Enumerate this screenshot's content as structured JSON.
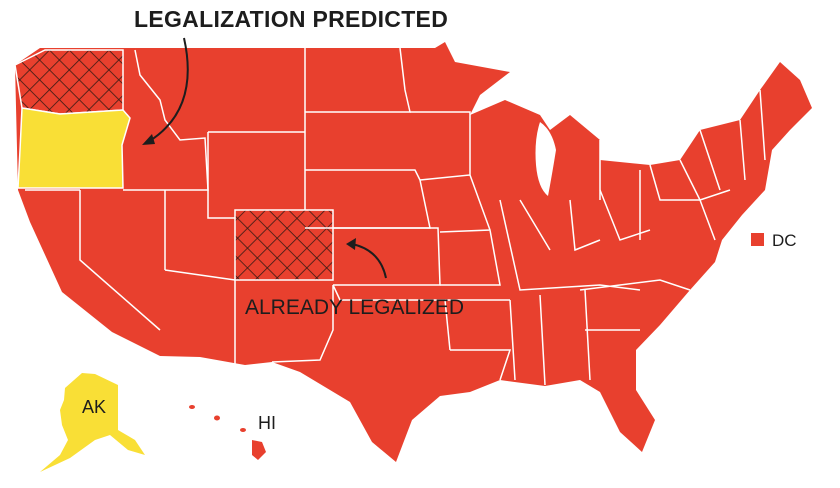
{
  "title": "LEGALIZATION PREDICTED",
  "annotation": "ALREADY LEGALIZED",
  "labels": {
    "dc": "DC",
    "ak": "AK",
    "hi": "HI"
  },
  "legend_colors": {
    "not_legal": "#e8402e",
    "predicted": "#f9df36",
    "already_legal_hatch": "#3b1a14"
  },
  "states": {
    "predicted": [
      "Oregon",
      "Alaska"
    ],
    "already_legalized": [
      "Washington",
      "Colorado"
    ]
  }
}
